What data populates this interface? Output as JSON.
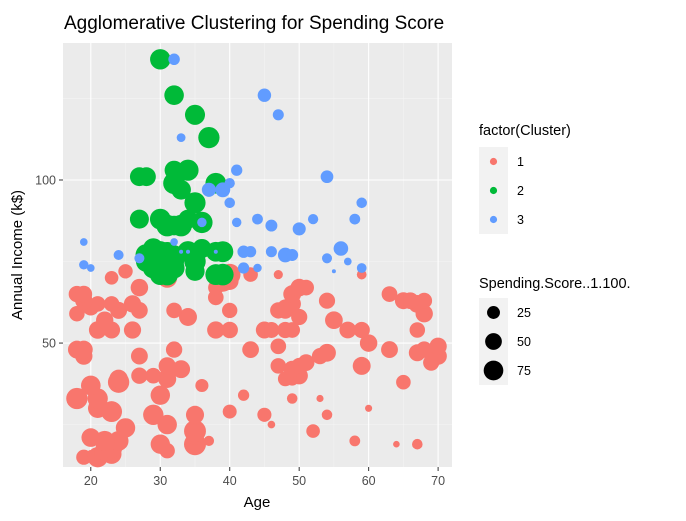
{
  "chart_data": {
    "type": "scatter",
    "title": "Agglomerative Clustering for Spending Score",
    "xlabel": "Age",
    "ylabel": "Annual Income (k$)",
    "xlim": [
      16,
      72
    ],
    "ylim": [
      12,
      142
    ],
    "x_ticks": [
      20,
      30,
      40,
      50,
      60,
      70
    ],
    "y_ticks": [
      50,
      100
    ],
    "grid": true,
    "legend_position": "right",
    "color_legend": {
      "title": "factor(Cluster)",
      "entries": [
        {
          "label": "1",
          "color": "#F8766D"
        },
        {
          "label": "2",
          "color": "#00BA38"
        },
        {
          "label": "3",
          "color": "#619CFF"
        }
      ]
    },
    "size_legend": {
      "title": "Spending.Score..1.100.",
      "entries": [
        {
          "label": "25",
          "value": 25
        },
        {
          "label": "50",
          "value": 50
        },
        {
          "label": "75",
          "value": 75
        }
      ]
    },
    "series": [
      {
        "name": "1",
        "color": "#F8766D",
        "points": [
          [
            19,
            15,
            39
          ],
          [
            21,
            15,
            81
          ],
          [
            20,
            16,
            6
          ],
          [
            23,
            16,
            77
          ],
          [
            31,
            17,
            40
          ],
          [
            22,
            17,
            76
          ],
          [
            35,
            18,
            6
          ],
          [
            23,
            18,
            94
          ],
          [
            64,
            19,
            3
          ],
          [
            30,
            19,
            72
          ],
          [
            67,
            19,
            14
          ],
          [
            35,
            19,
            99
          ],
          [
            58,
            20,
            15
          ],
          [
            24,
            20,
            77
          ],
          [
            37,
            20,
            13
          ],
          [
            22,
            20,
            79
          ],
          [
            35,
            21,
            35
          ],
          [
            20,
            21,
            66
          ],
          [
            52,
            23,
            29
          ],
          [
            35,
            23,
            98
          ],
          [
            35,
            24,
            35
          ],
          [
            25,
            24,
            73
          ],
          [
            46,
            25,
            5
          ],
          [
            31,
            25,
            73
          ],
          [
            54,
            28,
            14
          ],
          [
            29,
            28,
            82
          ],
          [
            45,
            28,
            32
          ],
          [
            35,
            28,
            61
          ],
          [
            40,
            29,
            31
          ],
          [
            23,
            29,
            87
          ],
          [
            60,
            30,
            4
          ],
          [
            21,
            30,
            73
          ],
          [
            53,
            33,
            4
          ],
          [
            18,
            33,
            92
          ],
          [
            49,
            33,
            14
          ],
          [
            21,
            33,
            81
          ],
          [
            42,
            34,
            17
          ],
          [
            30,
            34,
            73
          ],
          [
            36,
            37,
            26
          ],
          [
            20,
            37,
            75
          ],
          [
            65,
            38,
            35
          ],
          [
            24,
            38,
            92
          ],
          [
            48,
            39,
            36
          ],
          [
            31,
            39,
            61
          ],
          [
            49,
            39,
            28
          ],
          [
            24,
            39,
            65
          ],
          [
            50,
            40,
            55
          ],
          [
            27,
            40,
            47
          ],
          [
            29,
            40,
            42
          ],
          [
            31,
            40,
            42
          ],
          [
            49,
            42,
            52
          ],
          [
            33,
            42,
            60
          ],
          [
            31,
            43,
            54
          ],
          [
            59,
            43,
            60
          ],
          [
            50,
            43,
            45
          ],
          [
            47,
            43,
            41
          ],
          [
            51,
            44,
            50
          ],
          [
            69,
            44,
            46
          ],
          [
            27,
            46,
            51
          ],
          [
            53,
            46,
            46
          ],
          [
            70,
            46,
            56
          ],
          [
            19,
            46,
            55
          ],
          [
            67,
            47,
            52
          ],
          [
            54,
            47,
            59
          ],
          [
            63,
            48,
            51
          ],
          [
            18,
            48,
            59
          ],
          [
            43,
            48,
            50
          ],
          [
            68,
            48,
            48
          ],
          [
            19,
            48,
            59
          ],
          [
            32,
            48,
            47
          ],
          [
            70,
            49,
            55
          ],
          [
            47,
            49,
            42
          ],
          [
            60,
            50,
            49
          ],
          [
            60,
            50,
            56
          ],
          [
            59,
            54,
            47
          ],
          [
            26,
            54,
            54
          ],
          [
            45,
            54,
            53
          ],
          [
            40,
            54,
            48
          ],
          [
            23,
            54,
            52
          ],
          [
            49,
            54,
            42
          ],
          [
            57,
            54,
            51
          ],
          [
            38,
            54,
            55
          ],
          [
            67,
            54,
            41
          ],
          [
            46,
            54,
            44
          ],
          [
            21,
            54,
            57
          ],
          [
            48,
            54,
            46
          ],
          [
            55,
            57,
            58
          ],
          [
            22,
            57,
            55
          ],
          [
            34,
            58,
            60
          ],
          [
            50,
            58,
            46
          ],
          [
            68,
            59,
            55
          ],
          [
            18,
            59,
            41
          ],
          [
            48,
            60,
            49
          ],
          [
            40,
            60,
            40
          ],
          [
            32,
            60,
            42
          ],
          [
            24,
            60,
            52
          ],
          [
            47,
            60,
            47
          ],
          [
            27,
            60,
            50
          ],
          [
            48,
            61,
            42
          ],
          [
            20,
            61,
            49
          ],
          [
            23,
            62,
            41
          ],
          [
            49,
            62,
            48
          ],
          [
            67,
            62,
            59
          ],
          [
            26,
            62,
            55
          ],
          [
            49,
            62,
            56
          ],
          [
            21,
            62,
            42
          ],
          [
            66,
            63,
            50
          ],
          [
            54,
            63,
            46
          ],
          [
            68,
            63,
            43
          ],
          [
            66,
            63,
            48
          ],
          [
            65,
            63,
            52
          ],
          [
            19,
            63,
            54
          ],
          [
            38,
            64,
            42
          ],
          [
            19,
            64,
            46
          ],
          [
            18,
            65,
            48
          ],
          [
            19,
            65,
            50
          ],
          [
            63,
            65,
            43
          ],
          [
            49,
            65,
            59
          ],
          [
            51,
            67,
            43
          ],
          [
            50,
            67,
            57
          ],
          [
            27,
            67,
            56
          ],
          [
            38,
            67,
            40
          ],
          [
            40,
            69,
            58
          ],
          [
            39,
            69,
            91
          ],
          [
            23,
            70,
            29
          ],
          [
            31,
            70,
            77
          ],
          [
            43,
            71,
            35
          ],
          [
            40,
            71,
            95
          ],
          [
            59,
            71,
            11
          ],
          [
            38,
            71,
            75
          ],
          [
            47,
            71,
            9
          ],
          [
            39,
            71,
            75
          ],
          [
            25,
            72,
            34
          ]
        ]
      },
      {
        "name": "2",
        "color": "#00BA38",
        "points": [
          [
            30,
            137,
            83
          ],
          [
            32,
            126,
            74
          ],
          [
            35,
            120,
            79
          ],
          [
            37,
            113,
            91
          ],
          [
            32,
            103,
            69
          ],
          [
            34,
            103,
            90
          ],
          [
            33,
            97,
            75
          ],
          [
            27,
            101,
            68
          ],
          [
            38,
            99,
            86
          ],
          [
            28,
            101,
            68
          ],
          [
            32,
            99,
            97
          ],
          [
            35,
            93,
            90
          ],
          [
            30,
            88,
            86
          ],
          [
            31,
            86,
            95
          ],
          [
            32,
            86,
            75
          ],
          [
            34,
            88,
            69
          ],
          [
            36,
            87,
            92
          ],
          [
            27,
            88,
            69
          ],
          [
            33,
            86,
            95
          ],
          [
            29,
            79,
            83
          ],
          [
            28,
            77,
            97
          ],
          [
            39,
            78,
            88
          ],
          [
            32,
            77,
            74
          ],
          [
            38,
            78,
            76
          ],
          [
            30,
            78,
            89
          ],
          [
            31,
            78,
            73
          ],
          [
            36,
            79,
            70
          ],
          [
            34,
            78,
            90
          ],
          [
            32,
            73,
            88
          ],
          [
            29,
            73,
            88
          ],
          [
            31,
            73,
            73
          ],
          [
            30,
            74,
            80
          ],
          [
            35,
            75,
            93
          ],
          [
            32,
            75,
            78
          ],
          [
            28,
            75,
            87
          ],
          [
            32,
            73,
            71
          ],
          [
            30,
            71,
            87
          ],
          [
            35,
            72,
            71
          ],
          [
            38,
            71,
            87
          ],
          [
            39,
            71,
            95
          ],
          [
            31,
            71,
            95
          ]
        ]
      },
      {
        "name": "3",
        "color": "#619CFF",
        "points": [
          [
            32,
            137,
            18
          ],
          [
            45,
            126,
            28
          ],
          [
            47,
            120,
            16
          ],
          [
            33,
            113,
            8
          ],
          [
            41,
            103,
            17
          ],
          [
            40,
            99,
            13
          ],
          [
            54,
            101,
            24
          ],
          [
            37,
            97,
            32
          ],
          [
            59,
            93,
            14
          ],
          [
            41,
            87,
            10
          ],
          [
            44,
            88,
            15
          ],
          [
            46,
            86,
            20
          ],
          [
            58,
            88,
            15
          ],
          [
            52,
            88,
            13
          ],
          [
            50,
            85,
            26
          ],
          [
            56,
            79,
            35
          ],
          [
            42,
            78,
            22
          ],
          [
            19,
            81,
            5
          ],
          [
            46,
            78,
            16
          ],
          [
            48,
            77,
            12
          ],
          [
            48,
            77,
            36
          ],
          [
            38,
            78,
            1
          ],
          [
            57,
            75,
            5
          ],
          [
            34,
            78,
            1
          ],
          [
            49,
            77,
            20
          ],
          [
            36,
            87,
            10
          ],
          [
            32,
            81,
            5
          ],
          [
            39,
            97,
            37
          ],
          [
            43,
            78,
            17
          ],
          [
            54,
            76,
            12
          ],
          [
            59,
            73,
            11
          ],
          [
            33,
            78,
            1
          ],
          [
            44,
            73,
            7
          ],
          [
            55,
            72,
            1
          ],
          [
            19,
            74,
            10
          ],
          [
            40,
            93,
            8
          ],
          [
            42,
            73,
            17
          ],
          [
            27,
            76,
            12
          ],
          [
            40,
            93,
            14
          ],
          [
            24,
            77,
            12
          ],
          [
            20,
            73,
            5
          ]
        ]
      }
    ]
  }
}
